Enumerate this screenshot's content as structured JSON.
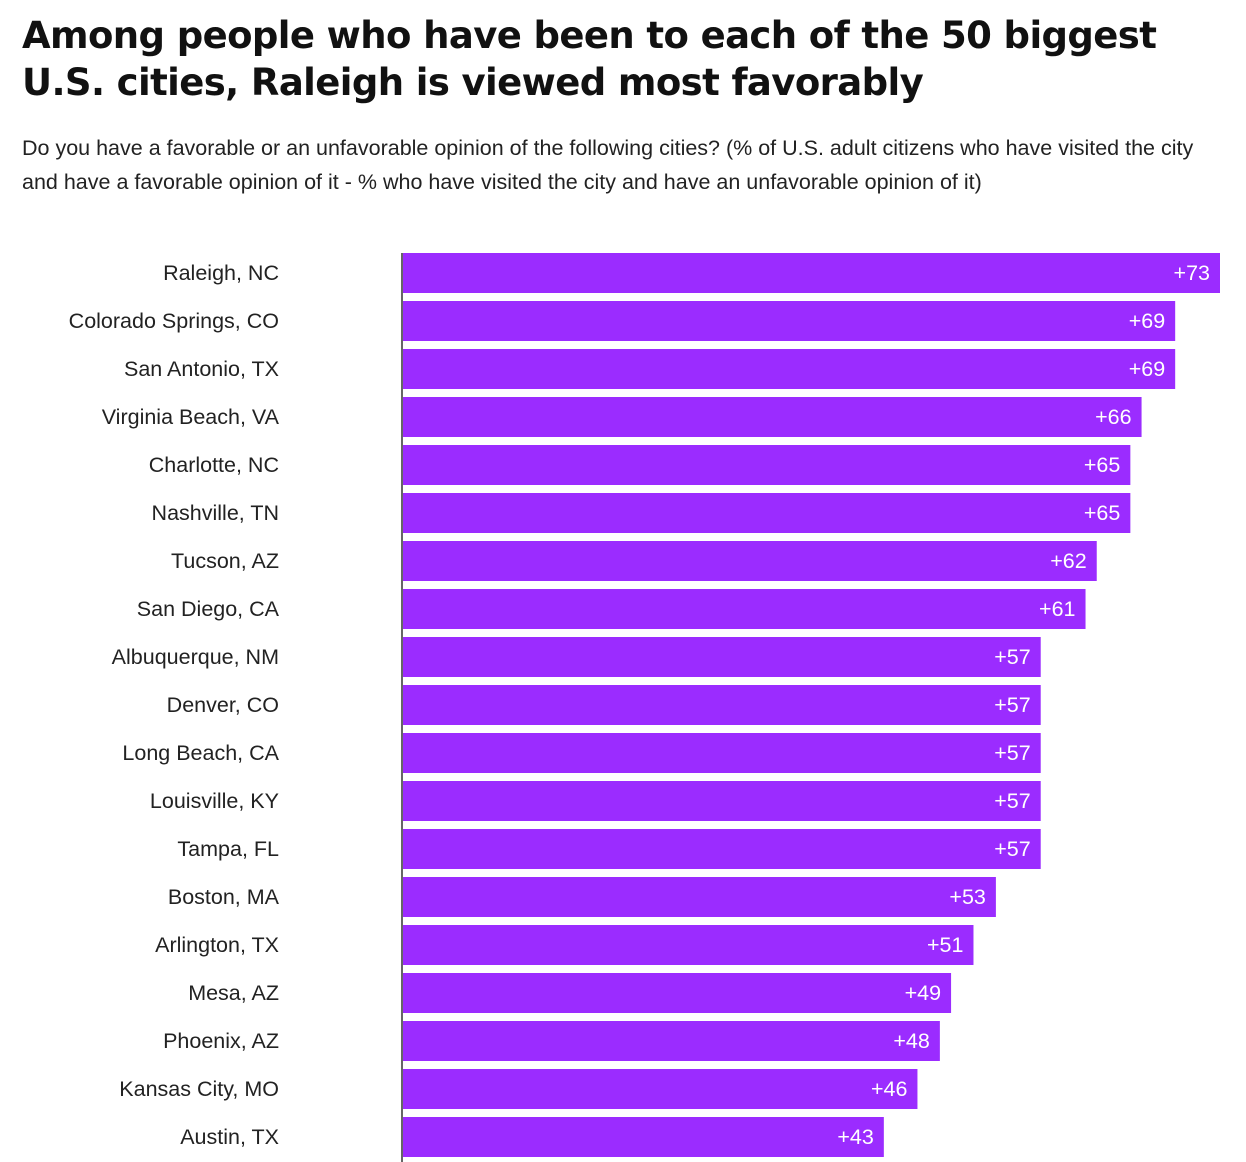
{
  "chart_data": {
    "type": "bar",
    "orientation": "horizontal",
    "title": "Among people who have been to each of the 50 biggest U.S. cities, Raleigh is viewed most favorably",
    "subtitle": "Do you have a favorable or an unfavorable opinion of the following cities? (% of U.S. adult citizens who have visited the city and have a favorable opinion of it - % who have visited the city and have an unfavorable opinion of it)",
    "categories": [
      "Raleigh, NC",
      "Colorado Springs, CO",
      "San Antonio, TX",
      "Virginia Beach, VA",
      "Charlotte, NC",
      "Nashville, TN",
      "Tucson, AZ",
      "San Diego, CA",
      "Albuquerque, NM",
      "Denver, CO",
      "Long Beach, CA",
      "Louisville, KY",
      "Tampa, FL",
      "Boston, MA",
      "Arlington, TX",
      "Mesa, AZ",
      "Phoenix, AZ",
      "Kansas City, MO",
      "Austin, TX"
    ],
    "values": [
      73,
      69,
      69,
      66,
      65,
      65,
      62,
      61,
      57,
      57,
      57,
      57,
      57,
      53,
      51,
      49,
      48,
      46,
      43
    ],
    "value_labels": [
      "+73",
      "+69",
      "+69",
      "+66",
      "+65",
      "+65",
      "+62",
      "+61",
      "+57",
      "+57",
      "+57",
      "+57",
      "+57",
      "+53",
      "+51",
      "+49",
      "+48",
      "+46",
      "+43"
    ],
    "xlim": [
      0,
      73
    ],
    "xlabel": "",
    "ylabel": "",
    "grid": false,
    "bar_color": "#9b2cff",
    "axis_color": "#333333"
  }
}
